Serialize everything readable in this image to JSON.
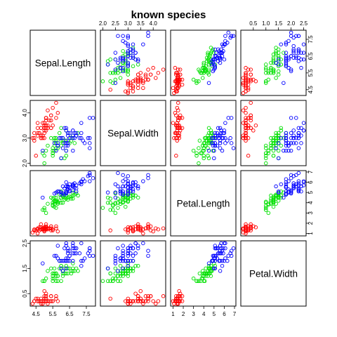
{
  "chart_data": {
    "type": "scatter",
    "title": "known species",
    "variables": [
      "Sepal.Length",
      "Sepal.Width",
      "Petal.Length",
      "Petal.Width"
    ],
    "axis_ticks": {
      "Sepal.Length": [
        "4.5",
        "5.5",
        "6.5",
        "7.5"
      ],
      "Sepal.Width": [
        "2.0",
        "2.5",
        "3.0",
        "3.5",
        "4.0"
      ],
      "Petal.Length": [
        "1",
        "2",
        "3",
        "4",
        "5",
        "6",
        "7"
      ],
      "Petal.Width": [
        "0.5",
        "1.0",
        "1.5",
        "2.0",
        "2.5"
      ]
    },
    "tick_labels_shown": {
      "top": [
        [
          "2.0",
          "2.5",
          "3.0",
          "3.5",
          "4.0"
        ],
        [
          "0.5",
          "1.0",
          "1.5",
          "2.0",
          "2.5"
        ]
      ],
      "right": [
        [
          "4.5",
          "5.5",
          "6.5",
          "7.5"
        ],
        [
          "1",
          "2",
          "3",
          "4",
          "5",
          "6",
          "7"
        ]
      ],
      "left": [
        [
          "2.0",
          "3.0",
          "4.0"
        ],
        [
          "0.5",
          "1.5",
          "2.5"
        ]
      ],
      "bottom": [
        [
          "4.5",
          "5.5",
          "6.5",
          "7.5"
        ],
        [
          "1",
          "2",
          "3",
          "4",
          "5",
          "6",
          "7"
        ]
      ]
    },
    "ranges": {
      "Sepal.Length": [
        4.3,
        7.9
      ],
      "Sepal.Width": [
        2.0,
        4.4
      ],
      "Petal.Length": [
        1.0,
        6.9
      ],
      "Petal.Width": [
        0.1,
        2.5
      ]
    },
    "legend": "none",
    "grid": false,
    "series": [
      {
        "color": "#ff0000",
        "points": [
          [
            5.1,
            3.5,
            1.4,
            0.2
          ],
          [
            4.9,
            3.0,
            1.4,
            0.2
          ],
          [
            4.7,
            3.2,
            1.3,
            0.2
          ],
          [
            4.6,
            3.1,
            1.5,
            0.2
          ],
          [
            5.0,
            3.6,
            1.4,
            0.2
          ],
          [
            5.4,
            3.9,
            1.7,
            0.4
          ],
          [
            4.6,
            3.4,
            1.4,
            0.3
          ],
          [
            5.0,
            3.4,
            1.5,
            0.2
          ],
          [
            4.4,
            2.9,
            1.4,
            0.2
          ],
          [
            4.9,
            3.1,
            1.5,
            0.1
          ],
          [
            5.4,
            3.7,
            1.5,
            0.2
          ],
          [
            4.8,
            3.4,
            1.6,
            0.2
          ],
          [
            4.8,
            3.0,
            1.4,
            0.1
          ],
          [
            4.3,
            3.0,
            1.1,
            0.1
          ],
          [
            5.8,
            4.0,
            1.2,
            0.2
          ],
          [
            5.7,
            4.4,
            1.5,
            0.4
          ],
          [
            5.4,
            3.9,
            1.3,
            0.4
          ],
          [
            5.1,
            3.5,
            1.4,
            0.3
          ],
          [
            5.7,
            3.8,
            1.7,
            0.3
          ],
          [
            5.1,
            3.8,
            1.5,
            0.3
          ],
          [
            5.4,
            3.4,
            1.7,
            0.2
          ],
          [
            5.1,
            3.7,
            1.5,
            0.4
          ],
          [
            4.6,
            3.6,
            1.0,
            0.2
          ],
          [
            5.1,
            3.3,
            1.7,
            0.5
          ],
          [
            4.8,
            3.4,
            1.9,
            0.2
          ],
          [
            5.0,
            3.0,
            1.6,
            0.2
          ],
          [
            5.0,
            3.4,
            1.6,
            0.4
          ],
          [
            5.2,
            3.5,
            1.5,
            0.2
          ],
          [
            5.2,
            3.4,
            1.4,
            0.2
          ],
          [
            4.7,
            3.2,
            1.6,
            0.2
          ],
          [
            4.8,
            3.1,
            1.6,
            0.2
          ],
          [
            5.4,
            3.4,
            1.5,
            0.4
          ],
          [
            5.2,
            4.1,
            1.5,
            0.1
          ],
          [
            5.5,
            4.2,
            1.4,
            0.2
          ],
          [
            4.9,
            3.1,
            1.5,
            0.2
          ],
          [
            5.0,
            3.2,
            1.2,
            0.2
          ],
          [
            5.5,
            3.5,
            1.3,
            0.2
          ],
          [
            4.9,
            3.6,
            1.4,
            0.1
          ],
          [
            4.4,
            3.0,
            1.3,
            0.2
          ],
          [
            5.1,
            3.4,
            1.5,
            0.2
          ],
          [
            5.0,
            3.5,
            1.3,
            0.3
          ],
          [
            4.5,
            2.3,
            1.3,
            0.3
          ],
          [
            4.4,
            3.2,
            1.3,
            0.2
          ],
          [
            5.0,
            3.5,
            1.6,
            0.6
          ],
          [
            5.1,
            3.8,
            1.9,
            0.4
          ],
          [
            4.8,
            3.0,
            1.4,
            0.3
          ],
          [
            5.1,
            3.8,
            1.6,
            0.2
          ],
          [
            4.6,
            3.2,
            1.4,
            0.2
          ],
          [
            5.3,
            3.7,
            1.5,
            0.2
          ],
          [
            5.0,
            3.3,
            1.4,
            0.2
          ]
        ]
      },
      {
        "color": "#00e000",
        "points": [
          [
            7.0,
            3.2,
            4.7,
            1.4
          ],
          [
            6.4,
            3.2,
            4.5,
            1.5
          ],
          [
            6.9,
            3.1,
            4.9,
            1.5
          ],
          [
            5.5,
            2.3,
            4.0,
            1.3
          ],
          [
            6.5,
            2.8,
            4.6,
            1.5
          ],
          [
            5.7,
            2.8,
            4.5,
            1.3
          ],
          [
            6.3,
            3.3,
            4.7,
            1.6
          ],
          [
            4.9,
            2.4,
            3.3,
            1.0
          ],
          [
            6.6,
            2.9,
            4.6,
            1.3
          ],
          [
            5.2,
            2.7,
            3.9,
            1.4
          ],
          [
            5.0,
            2.0,
            3.5,
            1.0
          ],
          [
            5.9,
            3.0,
            4.2,
            1.5
          ],
          [
            6.0,
            2.2,
            4.0,
            1.0
          ],
          [
            6.1,
            2.9,
            4.7,
            1.4
          ],
          [
            5.6,
            2.9,
            3.6,
            1.3
          ],
          [
            6.7,
            3.1,
            4.4,
            1.4
          ],
          [
            5.6,
            3.0,
            4.5,
            1.5
          ],
          [
            5.8,
            2.7,
            4.1,
            1.0
          ],
          [
            6.2,
            2.2,
            4.5,
            1.5
          ],
          [
            5.6,
            2.5,
            3.9,
            1.1
          ],
          [
            5.9,
            3.2,
            4.8,
            1.8
          ],
          [
            6.1,
            2.8,
            4.0,
            1.3
          ],
          [
            6.3,
            2.5,
            4.9,
            1.5
          ],
          [
            6.1,
            2.8,
            4.7,
            1.2
          ],
          [
            6.4,
            2.9,
            4.3,
            1.3
          ],
          [
            6.6,
            3.0,
            4.4,
            1.4
          ],
          [
            6.8,
            2.8,
            4.8,
            1.4
          ],
          [
            6.7,
            3.0,
            5.0,
            1.7
          ],
          [
            6.0,
            2.9,
            4.5,
            1.5
          ],
          [
            5.7,
            2.6,
            3.5,
            1.0
          ],
          [
            5.5,
            2.4,
            3.8,
            1.1
          ],
          [
            5.5,
            2.4,
            3.7,
            1.0
          ],
          [
            5.8,
            2.7,
            3.9,
            1.2
          ],
          [
            6.0,
            2.7,
            5.1,
            1.6
          ],
          [
            5.4,
            3.0,
            4.5,
            1.5
          ],
          [
            6.0,
            3.4,
            4.5,
            1.6
          ],
          [
            6.7,
            3.1,
            4.7,
            1.5
          ],
          [
            6.3,
            2.3,
            4.4,
            1.3
          ],
          [
            5.6,
            3.0,
            4.1,
            1.3
          ],
          [
            5.5,
            2.5,
            4.0,
            1.3
          ],
          [
            5.5,
            2.6,
            4.4,
            1.2
          ],
          [
            6.1,
            3.0,
            4.6,
            1.4
          ],
          [
            5.8,
            2.6,
            4.0,
            1.2
          ],
          [
            5.0,
            2.3,
            3.3,
            1.0
          ],
          [
            5.6,
            2.7,
            4.2,
            1.3
          ],
          [
            5.7,
            3.0,
            4.2,
            1.2
          ],
          [
            5.7,
            2.9,
            4.2,
            1.3
          ],
          [
            6.2,
            2.9,
            4.3,
            1.3
          ],
          [
            5.1,
            2.5,
            3.0,
            1.1
          ],
          [
            5.7,
            2.8,
            4.1,
            1.3
          ]
        ]
      },
      {
        "color": "#0000ff",
        "points": [
          [
            6.3,
            3.3,
            6.0,
            2.5
          ],
          [
            5.8,
            2.7,
            5.1,
            1.9
          ],
          [
            7.1,
            3.0,
            5.9,
            2.1
          ],
          [
            6.3,
            2.9,
            5.6,
            1.8
          ],
          [
            6.5,
            3.0,
            5.8,
            2.2
          ],
          [
            7.6,
            3.0,
            6.6,
            2.1
          ],
          [
            4.9,
            2.5,
            4.5,
            1.7
          ],
          [
            7.3,
            2.9,
            6.3,
            1.8
          ],
          [
            6.7,
            2.5,
            5.8,
            1.8
          ],
          [
            7.2,
            3.6,
            6.1,
            2.5
          ],
          [
            6.5,
            3.2,
            5.1,
            2.0
          ],
          [
            6.4,
            2.7,
            5.3,
            1.9
          ],
          [
            6.8,
            3.0,
            5.5,
            2.1
          ],
          [
            5.7,
            2.5,
            5.0,
            2.0
          ],
          [
            5.8,
            2.8,
            5.1,
            2.4
          ],
          [
            6.4,
            3.2,
            5.3,
            2.3
          ],
          [
            6.5,
            3.0,
            5.5,
            1.8
          ],
          [
            7.7,
            3.8,
            6.7,
            2.2
          ],
          [
            7.7,
            2.6,
            6.9,
            2.3
          ],
          [
            6.0,
            2.2,
            5.0,
            1.5
          ],
          [
            6.9,
            3.2,
            5.7,
            2.3
          ],
          [
            5.6,
            2.8,
            4.9,
            2.0
          ],
          [
            7.7,
            2.8,
            6.7,
            2.0
          ],
          [
            6.3,
            2.7,
            4.9,
            1.8
          ],
          [
            6.7,
            3.3,
            5.7,
            2.1
          ],
          [
            7.2,
            3.2,
            6.0,
            1.8
          ],
          [
            6.2,
            2.8,
            4.8,
            1.8
          ],
          [
            6.1,
            3.0,
            4.9,
            1.8
          ],
          [
            6.4,
            2.8,
            5.6,
            2.1
          ],
          [
            7.2,
            3.0,
            5.8,
            1.6
          ],
          [
            7.4,
            2.8,
            6.1,
            1.9
          ],
          [
            7.9,
            3.8,
            6.4,
            2.0
          ],
          [
            6.4,
            2.8,
            5.6,
            2.2
          ],
          [
            6.3,
            2.8,
            5.1,
            1.5
          ],
          [
            6.1,
            2.6,
            5.6,
            1.4
          ],
          [
            7.7,
            3.0,
            6.1,
            2.3
          ],
          [
            6.3,
            3.4,
            5.6,
            2.4
          ],
          [
            6.4,
            3.1,
            5.5,
            1.8
          ],
          [
            6.0,
            3.0,
            4.8,
            1.8
          ],
          [
            6.9,
            3.1,
            5.4,
            2.1
          ],
          [
            6.7,
            3.1,
            5.6,
            2.4
          ],
          [
            6.9,
            3.1,
            5.1,
            2.3
          ],
          [
            5.8,
            2.7,
            5.1,
            1.9
          ],
          [
            6.8,
            3.2,
            5.9,
            2.3
          ],
          [
            6.7,
            3.3,
            5.7,
            2.5
          ],
          [
            6.7,
            3.0,
            5.2,
            2.3
          ],
          [
            6.3,
            2.5,
            5.0,
            1.9
          ],
          [
            6.5,
            3.0,
            5.2,
            2.0
          ],
          [
            6.2,
            3.4,
            5.4,
            2.3
          ],
          [
            5.9,
            3.0,
            5.1,
            1.8
          ]
        ]
      }
    ]
  }
}
